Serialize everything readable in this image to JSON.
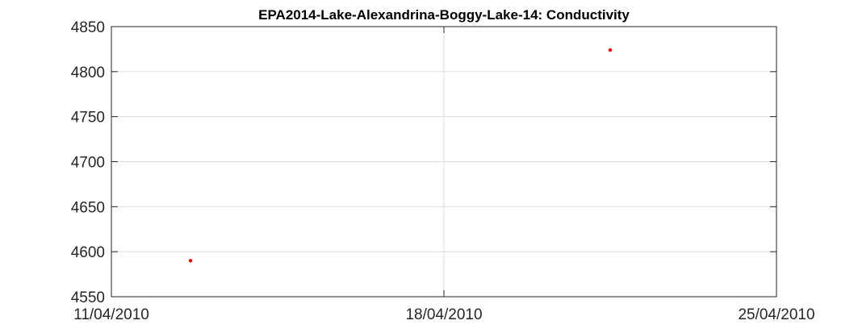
{
  "chart_data": {
    "type": "scatter",
    "title": "EPA2014-Lake-Alexandrina-Boggy-Lake-14: Conductivity",
    "xlabel": "",
    "ylabel": "",
    "x_range": [
      "2010-04-11",
      "2010-04-25"
    ],
    "ylim": [
      4550,
      4850
    ],
    "x_ticks": [
      {
        "date": "2010-04-11",
        "label": "11/04/2010"
      },
      {
        "date": "2010-04-18",
        "label": "18/04/2010"
      },
      {
        "date": "2010-04-25",
        "label": "25/04/2010"
      }
    ],
    "y_ticks": [
      4550,
      4600,
      4650,
      4700,
      4750,
      4800,
      4850
    ],
    "grid": true,
    "series": [
      {
        "color": "#ff0000",
        "points": [
          {
            "x": "2010-04-12 16:00",
            "y": 4590
          },
          {
            "x": "2010-04-21 12:00",
            "y": 4824
          }
        ]
      }
    ]
  }
}
